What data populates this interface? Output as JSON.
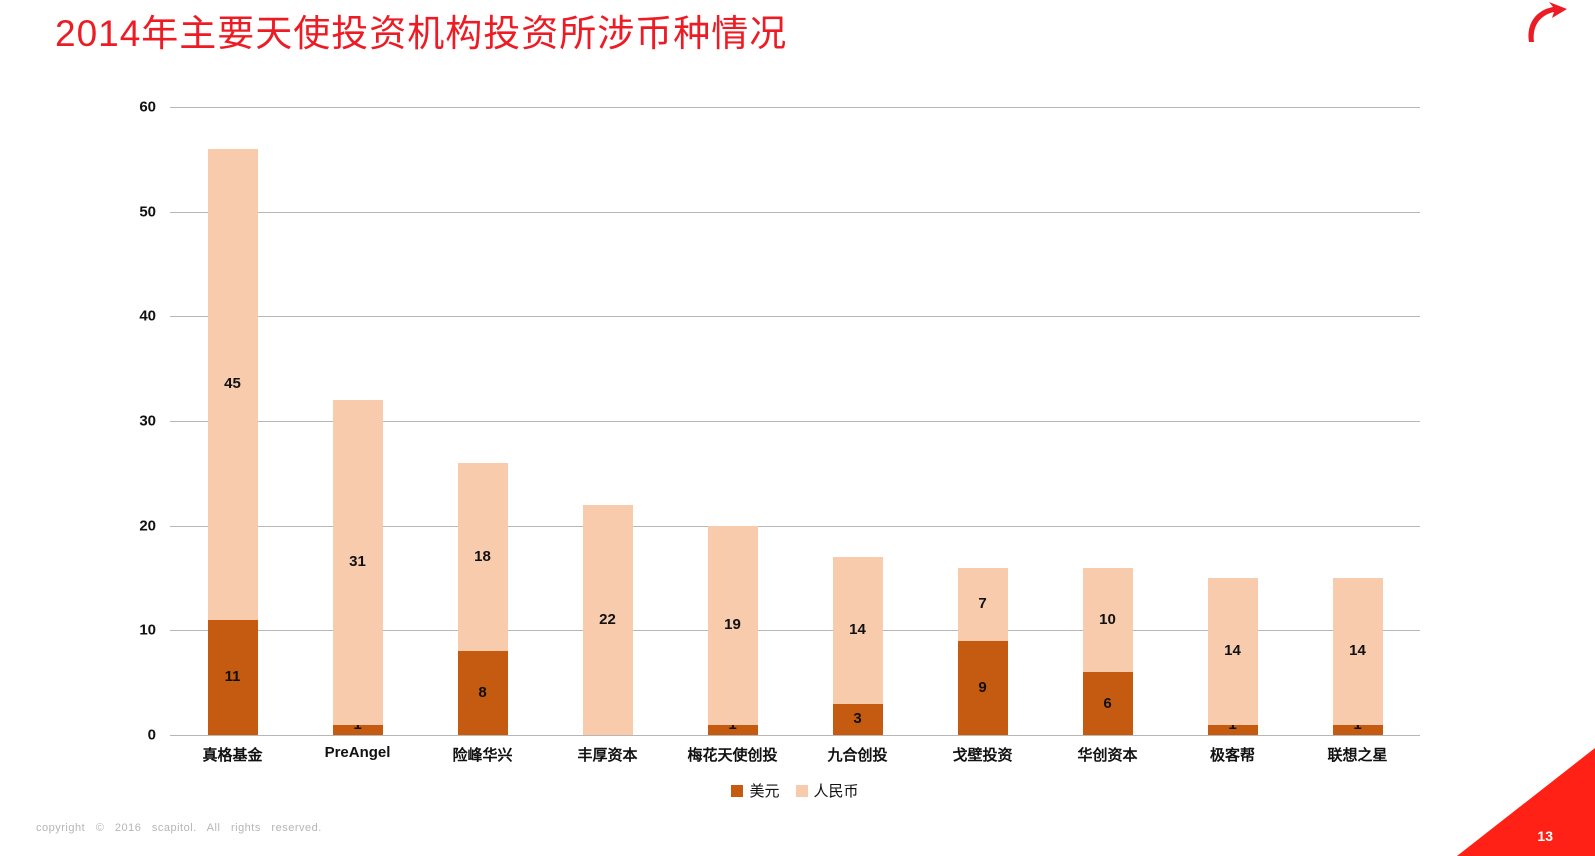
{
  "header": {
    "title": "2014年主要天使投资机构投资所涉币种情况",
    "logo_icon": "brand-swoosh-icon"
  },
  "chart_data": {
    "type": "bar",
    "stacked": true,
    "title": "2014年主要天使投资机构投资所涉币种情况",
    "categories": [
      "真格基金",
      "PreAngel",
      "险峰华兴",
      "丰厚资本",
      "梅花天使创投",
      "九合创投",
      "戈壁投资",
      "华创资本",
      "极客帮",
      "联想之星"
    ],
    "series": [
      {
        "name": "美元",
        "color": "#C55A11",
        "values": [
          11,
          1,
          8,
          0,
          1,
          3,
          9,
          6,
          1,
          1
        ]
      },
      {
        "name": "人民币",
        "color": "#F8CBAD",
        "values": [
          45,
          31,
          18,
          22,
          19,
          14,
          7,
          10,
          14,
          14
        ]
      }
    ],
    "totals": [
      56,
      32,
      26,
      22,
      20,
      17,
      16,
      16,
      15,
      15
    ],
    "xlabel": "",
    "ylabel": "",
    "ylim": [
      0,
      60
    ],
    "yticks": [
      0,
      10,
      20,
      30,
      40,
      50,
      60
    ],
    "grid": true,
    "legend_position": "bottom"
  },
  "footer": {
    "copyright": "copyright  ©  2016  scapitol.  All  rights  reserved.",
    "page_number": "13"
  },
  "colors": {
    "title_red": "#ED1C24",
    "corner_red": "#FF2116",
    "gridline_gray": "#B7B7B7",
    "usd_dark_orange": "#C55A11",
    "rmb_light_peach": "#F8CBAD"
  }
}
